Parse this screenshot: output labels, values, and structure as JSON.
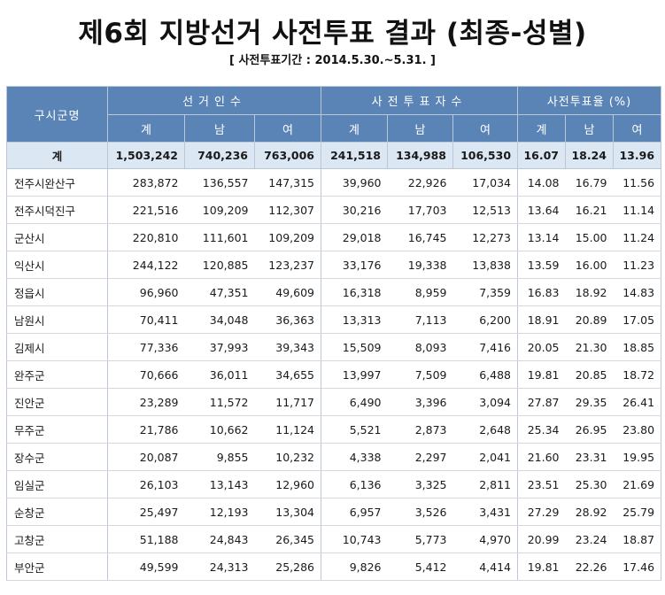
{
  "title": "제6회 지방선거 사전투표 결과 (최종-성별)",
  "subtitle": "[ 사전투표기간 : 2014.5.30.~5.31. ]",
  "header": {
    "region": "구시군명",
    "groups": [
      "선거인수",
      "사전투표자수",
      "사전투표율 (%)"
    ],
    "sub": [
      "계",
      "남",
      "여",
      "계",
      "남",
      "여",
      "계",
      "남",
      "여"
    ]
  },
  "rows": [
    {
      "name": "계",
      "v": [
        "1,503,242",
        "740,236",
        "763,006",
        "241,518",
        "134,988",
        "106,530",
        "16.07",
        "18.24",
        "13.96"
      ]
    },
    {
      "name": "전주시완산구",
      "v": [
        "283,872",
        "136,557",
        "147,315",
        "39,960",
        "22,926",
        "17,034",
        "14.08",
        "16.79",
        "11.56"
      ]
    },
    {
      "name": "전주시덕진구",
      "v": [
        "221,516",
        "109,209",
        "112,307",
        "30,216",
        "17,703",
        "12,513",
        "13.64",
        "16.21",
        "11.14"
      ]
    },
    {
      "name": "군산시",
      "v": [
        "220,810",
        "111,601",
        "109,209",
        "29,018",
        "16,745",
        "12,273",
        "13.14",
        "15.00",
        "11.24"
      ]
    },
    {
      "name": "익산시",
      "v": [
        "244,122",
        "120,885",
        "123,237",
        "33,176",
        "19,338",
        "13,838",
        "13.59",
        "16.00",
        "11.23"
      ]
    },
    {
      "name": "정읍시",
      "v": [
        "96,960",
        "47,351",
        "49,609",
        "16,318",
        "8,959",
        "7,359",
        "16.83",
        "18.92",
        "14.83"
      ]
    },
    {
      "name": "남원시",
      "v": [
        "70,411",
        "34,048",
        "36,363",
        "13,313",
        "7,113",
        "6,200",
        "18.91",
        "20.89",
        "17.05"
      ]
    },
    {
      "name": "김제시",
      "v": [
        "77,336",
        "37,993",
        "39,343",
        "15,509",
        "8,093",
        "7,416",
        "20.05",
        "21.30",
        "18.85"
      ]
    },
    {
      "name": "완주군",
      "v": [
        "70,666",
        "36,011",
        "34,655",
        "13,997",
        "7,509",
        "6,488",
        "19.81",
        "20.85",
        "18.72"
      ]
    },
    {
      "name": "진안군",
      "v": [
        "23,289",
        "11,572",
        "11,717",
        "6,490",
        "3,396",
        "3,094",
        "27.87",
        "29.35",
        "26.41"
      ]
    },
    {
      "name": "무주군",
      "v": [
        "21,786",
        "10,662",
        "11,124",
        "5,521",
        "2,873",
        "2,648",
        "25.34",
        "26.95",
        "23.80"
      ]
    },
    {
      "name": "장수군",
      "v": [
        "20,087",
        "9,855",
        "10,232",
        "4,338",
        "2,297",
        "2,041",
        "21.60",
        "23.31",
        "19.95"
      ]
    },
    {
      "name": "임실군",
      "v": [
        "26,103",
        "13,143",
        "12,960",
        "6,136",
        "3,325",
        "2,811",
        "23.51",
        "25.30",
        "21.69"
      ]
    },
    {
      "name": "순창군",
      "v": [
        "25,497",
        "12,193",
        "13,304",
        "6,957",
        "3,526",
        "3,431",
        "27.29",
        "28.92",
        "25.79"
      ]
    },
    {
      "name": "고창군",
      "v": [
        "51,188",
        "24,843",
        "26,345",
        "10,743",
        "5,773",
        "4,970",
        "20.99",
        "23.24",
        "18.87"
      ]
    },
    {
      "name": "부안군",
      "v": [
        "49,599",
        "24,313",
        "25,286",
        "9,826",
        "5,412",
        "4,414",
        "19.81",
        "22.26",
        "17.46"
      ]
    }
  ]
}
